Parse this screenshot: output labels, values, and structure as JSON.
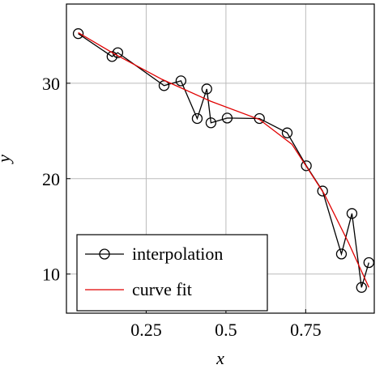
{
  "chart_data": {
    "type": "line",
    "xlabel": "x",
    "ylabel": "y",
    "xlim": [
      0,
      0.965
    ],
    "ylim": [
      5.9,
      38.3
    ],
    "xticks": [
      0.25,
      0.5,
      0.75
    ],
    "yticks": [
      10,
      20,
      30
    ],
    "grid": true,
    "legend": "lower left",
    "series": [
      {
        "name": "interpolation",
        "color": "#000000",
        "marker": "circle",
        "x": [
          0.037,
          0.143,
          0.161,
          0.306,
          0.359,
          0.41,
          0.44,
          0.453,
          0.504,
          0.605,
          0.692,
          0.752,
          0.803,
          0.862,
          0.895,
          0.925,
          0.948
        ],
        "values": [
          35.2,
          32.8,
          33.2,
          29.75,
          30.25,
          26.3,
          29.4,
          25.85,
          26.35,
          26.3,
          24.8,
          21.35,
          18.7,
          12.1,
          16.35,
          8.6,
          11.2
        ]
      },
      {
        "name": "curve fit",
        "color": "#e00000",
        "x": [
          0.037,
          0.149,
          0.3,
          0.453,
          0.605,
          0.707,
          0.808,
          0.884,
          0.948
        ],
        "values": [
          35.3,
          33.1,
          30.4,
          28.1,
          26.2,
          23.6,
          18.4,
          13.3,
          8.6
        ]
      }
    ]
  }
}
